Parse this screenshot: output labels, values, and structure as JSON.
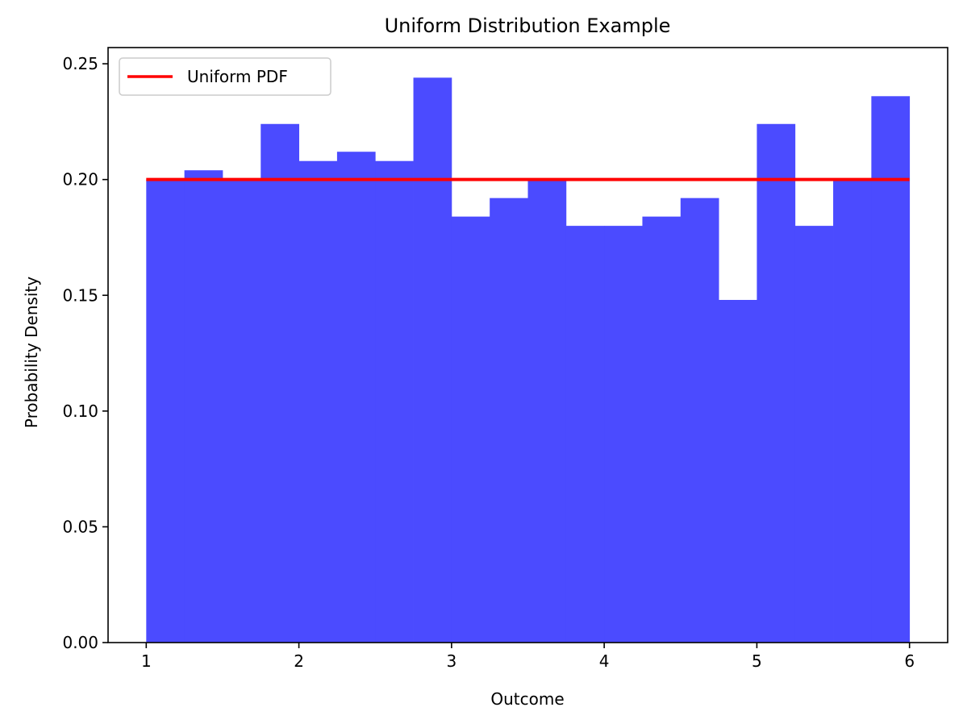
{
  "chart_data": {
    "type": "bar",
    "subtype": "histogram",
    "title": "Uniform Distribution Example",
    "xlabel": "Outcome",
    "ylabel": "Probability Density",
    "xlim": [
      0.75,
      6.25
    ],
    "ylim": [
      0.0,
      0.257
    ],
    "xticks": [
      1,
      2,
      3,
      4,
      5,
      6
    ],
    "xtick_labels": [
      "1",
      "2",
      "3",
      "4",
      "5",
      "6"
    ],
    "yticks": [
      0.0,
      0.05,
      0.1,
      0.15,
      0.2,
      0.25
    ],
    "ytick_labels": [
      "0.00",
      "0.05",
      "0.10",
      "0.15",
      "0.20",
      "0.25"
    ],
    "grid": false,
    "legend_position": "top-left",
    "bins": {
      "edges": [
        1.0,
        1.25,
        1.5,
        1.75,
        2.0,
        2.25,
        2.5,
        2.75,
        3.0,
        3.25,
        3.5,
        3.75,
        4.0,
        4.25,
        4.5,
        4.75,
        5.0,
        5.25,
        5.5,
        5.75,
        6.0
      ],
      "values": [
        0.2,
        0.204,
        0.2,
        0.224,
        0.208,
        0.212,
        0.208,
        0.244,
        0.184,
        0.192,
        0.2,
        0.18,
        0.18,
        0.184,
        0.192,
        0.148,
        0.224,
        0.18,
        0.2,
        0.236
      ]
    },
    "series": [
      {
        "name": "Uniform PDF",
        "type": "line",
        "x": [
          1,
          6
        ],
        "y": [
          0.2,
          0.2
        ],
        "color": "#ff0000"
      }
    ],
    "bar_color": "#4b4bff"
  }
}
